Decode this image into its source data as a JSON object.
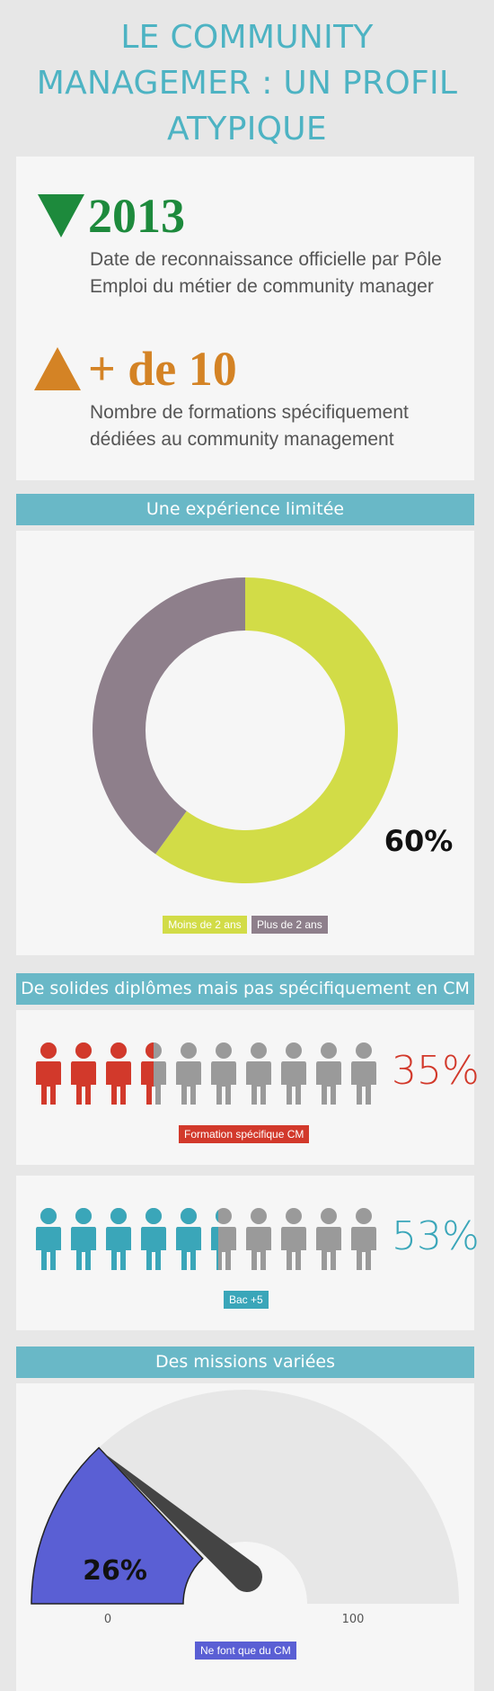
{
  "title": {
    "line1": "LE COMMUNITY",
    "line2": "MANAGEMER : UN PROFIL",
    "line3": "ATYPIQUE"
  },
  "stats": [
    {
      "value": "2013",
      "description": "Date de reconnaissance officielle par Pôle Emploi du métier de community manager",
      "icon": "triangle-down-icon",
      "color": "#1d8a3c"
    },
    {
      "value": "+ de 10",
      "description": "Nombre de formations spécifiquement dédiées au community management",
      "icon": "triangle-up-icon",
      "color": "#d48325"
    }
  ],
  "sections": {
    "experience": "Une expérience limitée",
    "diplomes": "De solides diplômes mais pas spécifiquement en CM",
    "missions": "Des missions variées"
  },
  "chart_data": [
    {
      "type": "pie",
      "title": "Une expérience limitée",
      "series": [
        {
          "name": "Moins de 2 ans",
          "value": 60,
          "color": "#d2dc47"
        },
        {
          "name": "Plus de 2 ans",
          "value": 40,
          "color": "#8e7f8b"
        }
      ],
      "data_label": "60%",
      "donut": true
    },
    {
      "type": "bar",
      "title": "De solides diplômes mais pas spécifiquement en CM",
      "categories": [
        "Formation spécifique CM"
      ],
      "values": [
        35
      ],
      "value_label": "35%",
      "color": "#d2392b",
      "icon": "person-icon",
      "icon_count": 10
    },
    {
      "type": "bar",
      "categories": [
        "Bac +5"
      ],
      "values": [
        53
      ],
      "value_label": "53%",
      "color": "#3aa6b9",
      "icon": "person-icon",
      "icon_count": 10
    },
    {
      "type": "gauge",
      "title": "Des missions variées",
      "categories": [
        "Ne font que du CM"
      ],
      "values": [
        26
      ],
      "value_label": "26%",
      "ylim": [
        0,
        100
      ],
      "min_label": "0",
      "max_label": "100",
      "color": "#5a5fd4"
    }
  ],
  "colors": {
    "title": "#4db3c3",
    "section_bar": "#69b8c7",
    "inactive_person": "#9a9a9a",
    "gauge_track": "#e7e7e7",
    "needle": "#444444"
  }
}
